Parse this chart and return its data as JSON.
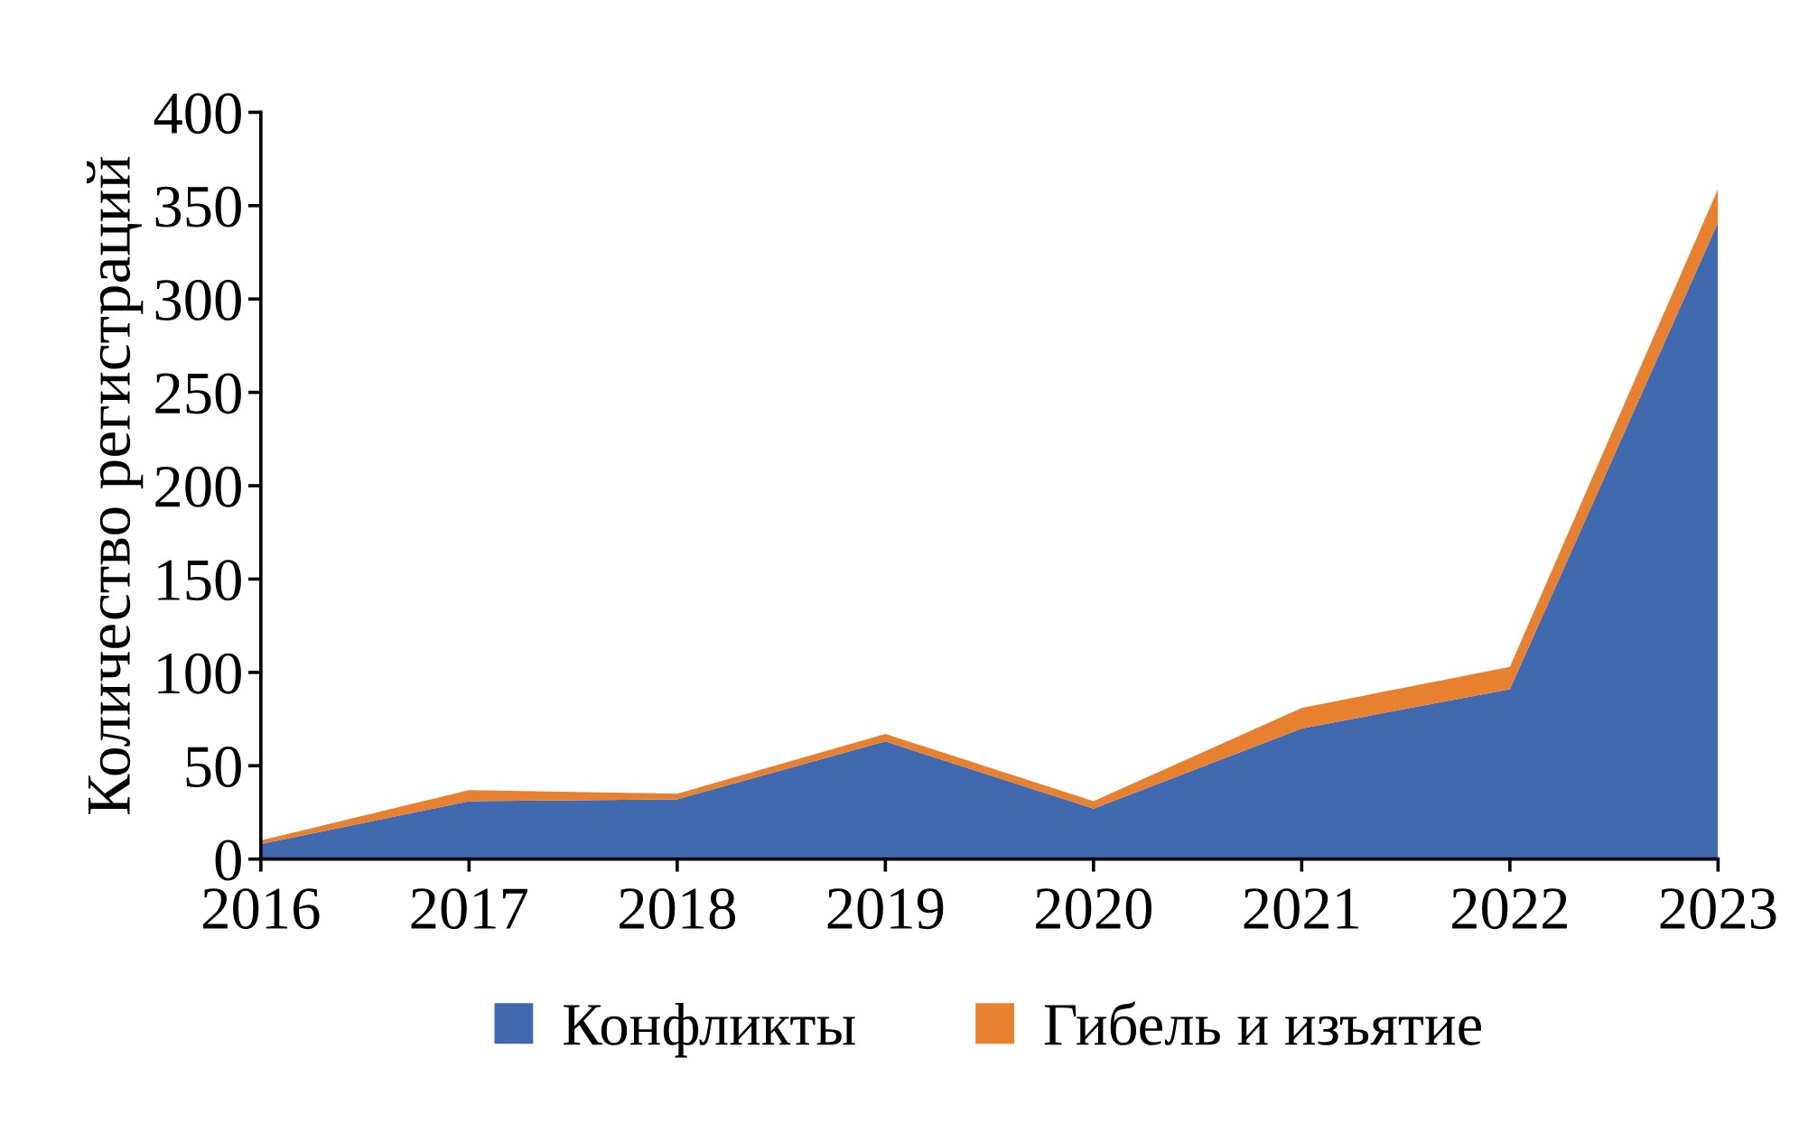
{
  "chart_data": {
    "type": "area",
    "stacked": true,
    "ylabel": "Количество регистраций",
    "x": [
      2016,
      2017,
      2018,
      2019,
      2020,
      2021,
      2022,
      2023
    ],
    "series": [
      {
        "name": "Конфликты",
        "color": "#4169b0",
        "values": [
          8,
          31,
          32,
          63,
          27,
          70,
          91,
          341
        ]
      },
      {
        "name": "Гибель и изъятие",
        "color": "#e8812f",
        "values": [
          2,
          6,
          3,
          4,
          4,
          11,
          12,
          18
        ]
      }
    ],
    "xlim": [
      2016,
      2023
    ],
    "xticks": [
      2016,
      2017,
      2018,
      2019,
      2020,
      2021,
      2022,
      2023
    ],
    "ylim": [
      0,
      400
    ],
    "yticks": [
      0,
      50,
      100,
      150,
      200,
      250,
      300,
      350,
      400
    ],
    "grid": false,
    "legend": "bottom"
  }
}
